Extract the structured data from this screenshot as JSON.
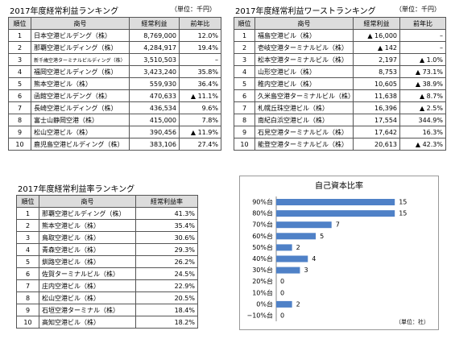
{
  "tables": [
    {
      "title": "2017年度経常利益ランキング",
      "unit": "（単位：千円）",
      "columns": [
        "順位",
        "商号",
        "経常利益",
        "前年比"
      ],
      "rows": [
        [
          "1",
          "日本空港ビルデング（株）",
          "8,769,000",
          "12.0%"
        ],
        [
          "2",
          "那覇空港ビルディング（株）",
          "4,284,917",
          "19.4%"
        ],
        [
          "3",
          "新千歳空港ターミナルビルディング（株）",
          "3,510,503",
          "–"
        ],
        [
          "4",
          "福岡空港ビルディング（株）",
          "3,423,240",
          "35.8%"
        ],
        [
          "5",
          "熊本空港ビル（株）",
          "559,930",
          "36.4%"
        ],
        [
          "6",
          "函館空港ビルデング（株）",
          "470,633",
          "▲ 11.1%"
        ],
        [
          "7",
          "長崎空港ビルディング（株）",
          "436,534",
          "9.6%"
        ],
        [
          "8",
          "富士山静岡空港（株）",
          "415,000",
          "7.8%"
        ],
        [
          "9",
          "松山空港ビル（株）",
          "390,456",
          "▲ 11.9%"
        ],
        [
          "10",
          "鹿児島空港ビルディング（株）",
          "383,106",
          "27.4%"
        ]
      ]
    },
    {
      "title": "2017年度経常利益ワーストランキング",
      "unit": "（単位：千円）",
      "columns": [
        "順位",
        "商号",
        "経常利益",
        "前年比"
      ],
      "rows": [
        [
          "1",
          "福島空港ビル（株）",
          "▲ 16,000",
          "–"
        ],
        [
          "2",
          "壱岐空港ターミナルビル（株）",
          "▲ 142",
          "–"
        ],
        [
          "3",
          "松本空港ターミナルビル（株）",
          "2,197",
          "▲ 1.0%"
        ],
        [
          "4",
          "山形空港ビル（株）",
          "8,753",
          "▲ 73.1%"
        ],
        [
          "5",
          "稚内空港ビル（株）",
          "10,605",
          "▲ 38.9%"
        ],
        [
          "6",
          "久米島空港ターミナルビル（株）",
          "11,638",
          "▲ 8.7%"
        ],
        [
          "7",
          "札幌丘珠空港ビル（株）",
          "16,396",
          "▲ 2.5%"
        ],
        [
          "8",
          "南紀白浜空港ビル（株）",
          "17,554",
          "344.9%"
        ],
        [
          "9",
          "石見空港ターミナルビル（株）",
          "17,642",
          "16.3%"
        ],
        [
          "10",
          "能登空港ターミナルビル（株）",
          "20,613",
          "▲ 42.3%"
        ]
      ]
    },
    {
      "title": "2017年度経常利益率ランキング",
      "columns": [
        "順位",
        "商号",
        "経常利益率"
      ],
      "rows": [
        [
          "1",
          "那覇空港ビルディング（株）",
          "41.3%"
        ],
        [
          "2",
          "熊本空港ビル（株）",
          "35.4%"
        ],
        [
          "3",
          "鳥取空港ビル（株）",
          "30.6%"
        ],
        [
          "4",
          "青森空港ビル（株）",
          "29.3%"
        ],
        [
          "5",
          "釧路空港ビル（株）",
          "26.2%"
        ],
        [
          "6",
          "佐賀ターミナルビル（株）",
          "24.5%"
        ],
        [
          "7",
          "庄内空港ビル（株）",
          "22.9%"
        ],
        [
          "8",
          "松山空港ビル（株）",
          "20.5%"
        ],
        [
          "9",
          "石垣空港ターミナル（株）",
          "18.4%"
        ],
        [
          "10",
          "高知空港ビル（株）",
          "18.2%"
        ]
      ]
    }
  ],
  "chart_data": {
    "type": "barh",
    "title": "自己資本比率",
    "note": "（単位：社）",
    "categories": [
      "90%台",
      "80%台",
      "70%台",
      "60%台",
      "50%台",
      "40%台",
      "30%台",
      "20%台",
      "10%台",
      "0%台",
      "−10%台"
    ],
    "values": [
      15,
      15,
      7,
      5,
      2,
      4,
      3,
      0,
      0,
      2,
      0
    ],
    "color": "#4f81c7",
    "xlim": [
      0,
      16
    ]
  }
}
